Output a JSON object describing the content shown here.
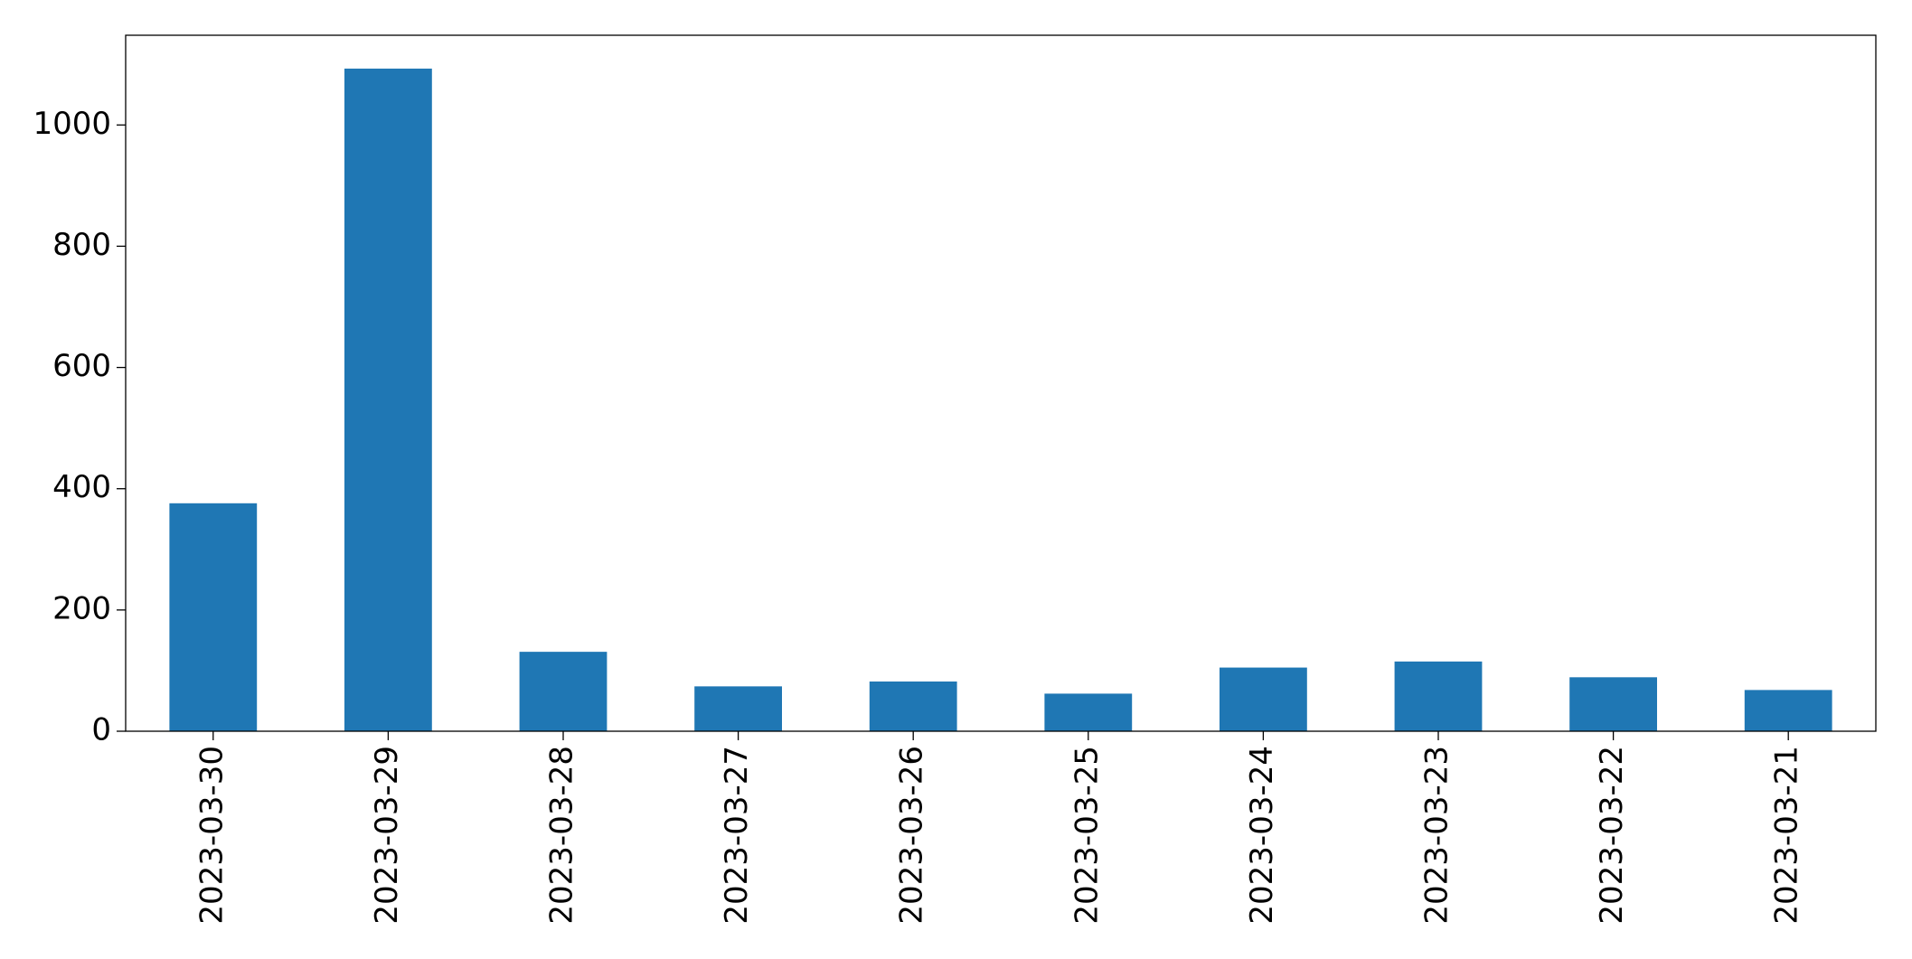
{
  "chart_data": {
    "type": "bar",
    "categories": [
      "2023-03-30",
      "2023-03-29",
      "2023-03-28",
      "2023-03-27",
      "2023-03-26",
      "2023-03-25",
      "2023-03-24",
      "2023-03-23",
      "2023-03-22",
      "2023-03-21"
    ],
    "values": [
      376,
      1093,
      131,
      74,
      82,
      62,
      105,
      115,
      89,
      68
    ],
    "color": "#1f77b4",
    "ylim": [
      0,
      1148
    ],
    "yticks": [
      0,
      200,
      400,
      600,
      800,
      1000
    ],
    "grid": false
  }
}
